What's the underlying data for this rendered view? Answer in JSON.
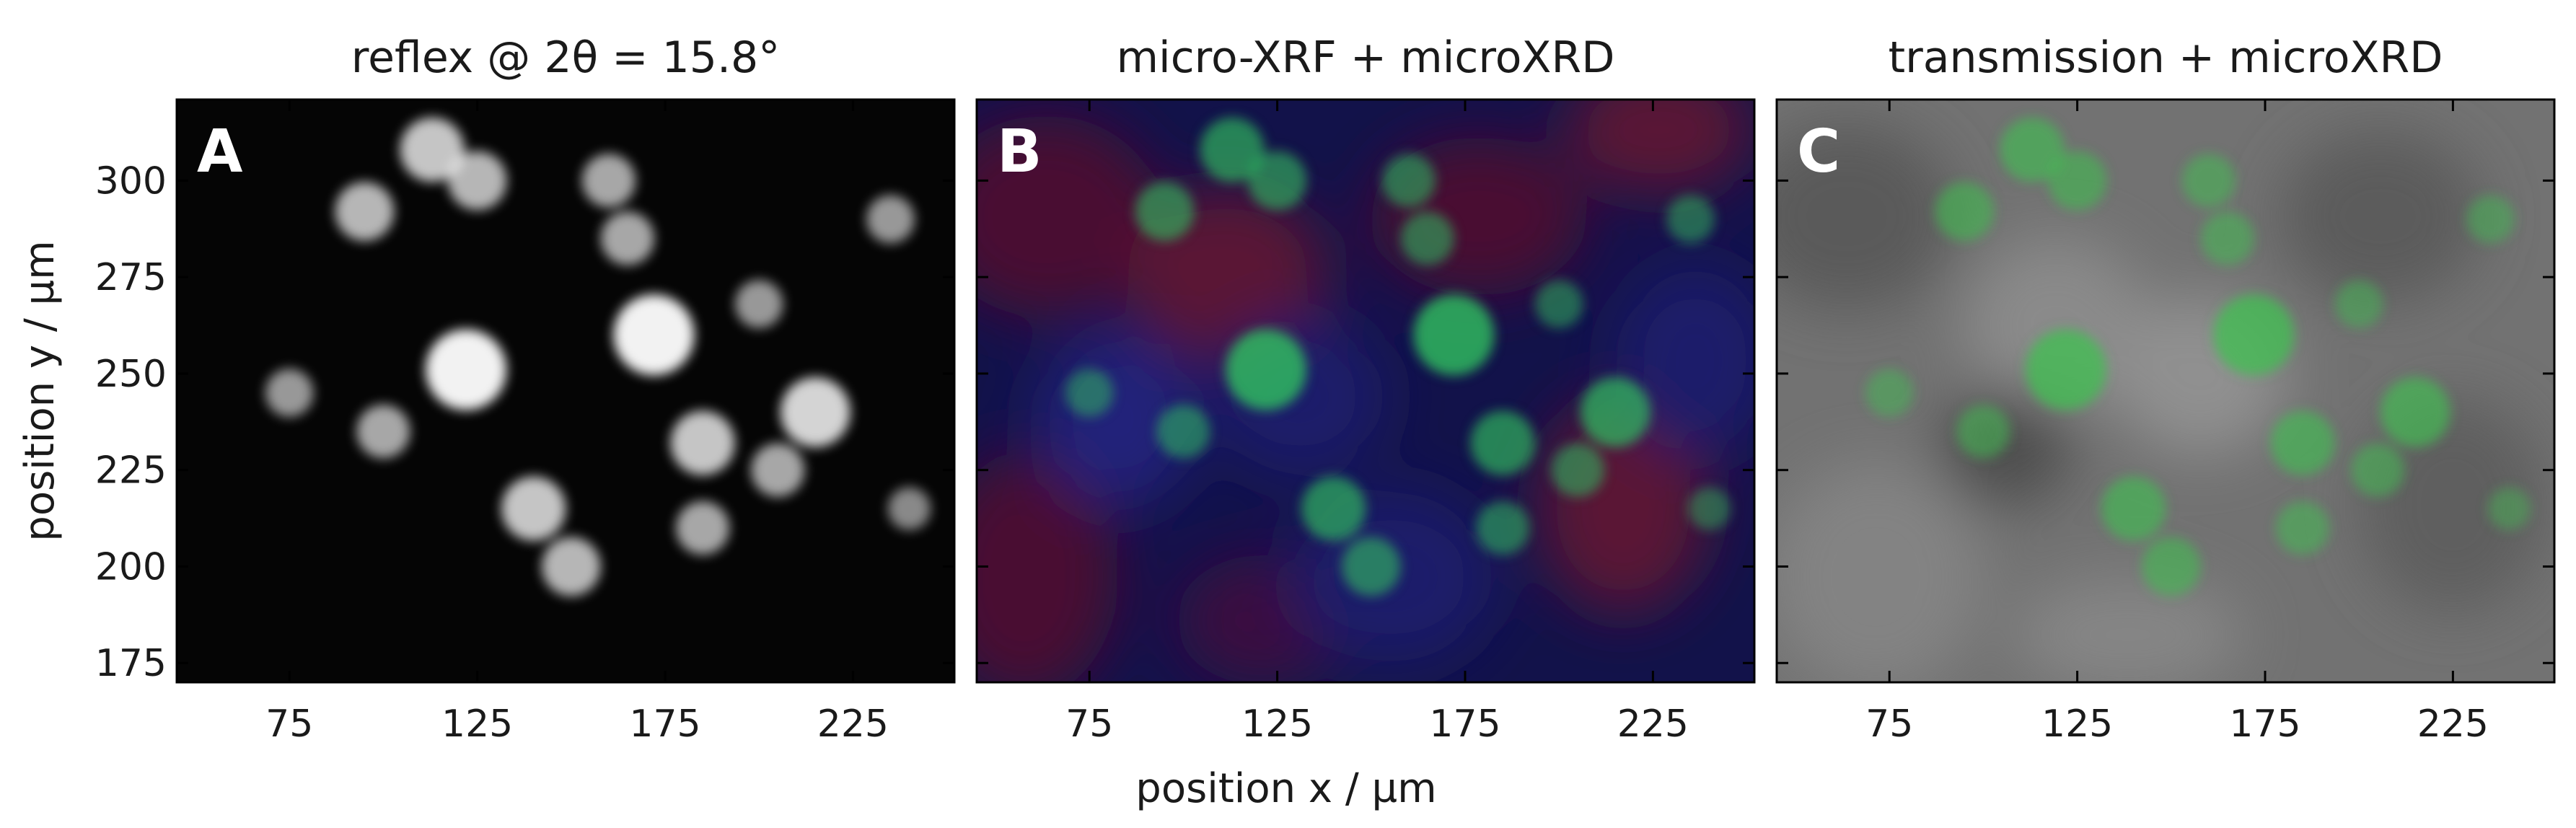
{
  "figure": {
    "xlabel": "position x / µm",
    "ylabel": "position y / µm",
    "panels": [
      {
        "letter": "A",
        "title": "reflex @ 2θ = 15.8°",
        "colors": {
          "background": "#050505",
          "signal": "#ffffff"
        },
        "show_y_ticklabels": true
      },
      {
        "letter": "B",
        "title": "micro-XRF + microXRD",
        "colors": {
          "background": "#101040",
          "red_channel": "#5a1030",
          "blue_channel": "#1a1a70",
          "signal": "#30c060"
        },
        "show_y_ticklabels": false
      },
      {
        "letter": "C",
        "title": "transmission + microXRD",
        "colors": {
          "background": "#707070",
          "signal": "#40c050"
        },
        "show_y_ticklabels": false
      }
    ],
    "x_ticks": [
      "75",
      "125",
      "175",
      "225"
    ],
    "y_ticks": [
      "175",
      "200",
      "225",
      "250",
      "275",
      "300"
    ]
  },
  "chart_data": {
    "type": "heatmap",
    "xlabel": "position x / µm",
    "ylabel": "position y / µm",
    "xlim": [
      45,
      252
    ],
    "ylim": [
      170,
      321
    ],
    "x_ticks": [
      75,
      125,
      175,
      225
    ],
    "y_ticks": [
      175,
      200,
      225,
      250,
      275,
      300
    ],
    "panels": [
      {
        "letter": "A",
        "title": "reflex @ 2θ = 15.8°",
        "colormap": "grayscale"
      },
      {
        "letter": "B",
        "title": "micro-XRF + microXRD",
        "colormap": "rgb-composite"
      },
      {
        "letter": "C",
        "title": "transmission + microXRD",
        "colormap": "gray-with-green-overlay"
      }
    ],
    "bright_features": [
      {
        "x": 122,
        "y": 251,
        "intensity": 1.0
      },
      {
        "x": 172,
        "y": 260,
        "intensity": 1.0
      },
      {
        "x": 185,
        "y": 232,
        "intensity": 0.7
      },
      {
        "x": 215,
        "y": 240,
        "intensity": 0.8
      },
      {
        "x": 95,
        "y": 292,
        "intensity": 0.6
      },
      {
        "x": 113,
        "y": 308,
        "intensity": 0.7
      },
      {
        "x": 125,
        "y": 300,
        "intensity": 0.6
      },
      {
        "x": 160,
        "y": 300,
        "intensity": 0.5
      },
      {
        "x": 140,
        "y": 215,
        "intensity": 0.7
      },
      {
        "x": 150,
        "y": 200,
        "intensity": 0.6
      },
      {
        "x": 185,
        "y": 210,
        "intensity": 0.5
      },
      {
        "x": 75,
        "y": 245,
        "intensity": 0.4
      },
      {
        "x": 100,
        "y": 235,
        "intensity": 0.5
      },
      {
        "x": 200,
        "y": 268,
        "intensity": 0.4
      },
      {
        "x": 235,
        "y": 290,
        "intensity": 0.4
      },
      {
        "x": 240,
        "y": 215,
        "intensity": 0.3
      },
      {
        "x": 165,
        "y": 285,
        "intensity": 0.5
      },
      {
        "x": 205,
        "y": 225,
        "intensity": 0.5
      }
    ]
  }
}
